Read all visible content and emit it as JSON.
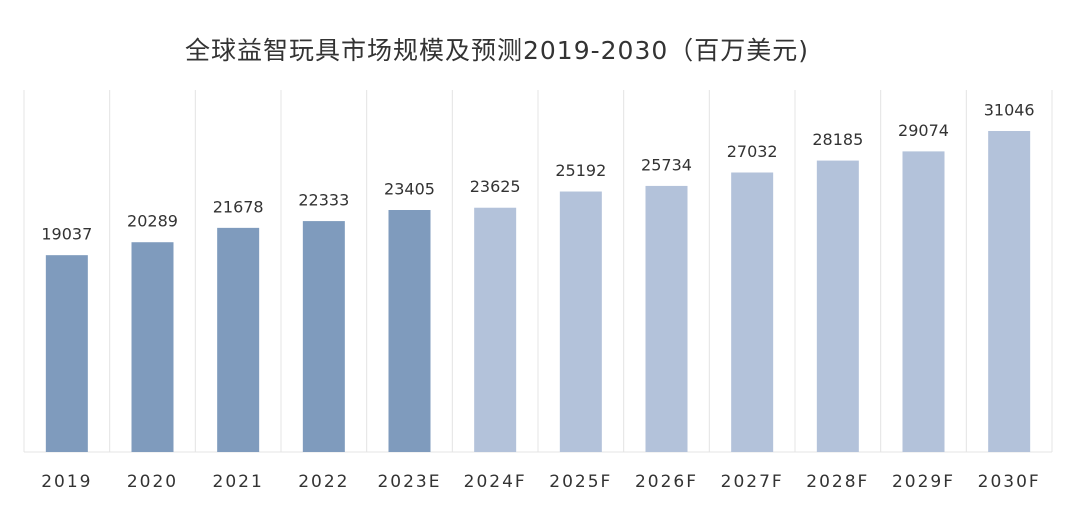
{
  "chart_data": {
    "type": "bar",
    "title": "全球益智玩具市场规模及预测2019-2030（百万美元)",
    "categories": [
      "2019",
      "2020",
      "2021",
      "2022",
      "2023E",
      "2024F",
      "2025F",
      "2026F",
      "2027F",
      "2028F",
      "2029F",
      "2030F"
    ],
    "values": [
      19037,
      20289,
      21678,
      22333,
      23405,
      23625,
      25192,
      25734,
      27032,
      28185,
      29074,
      31046
    ],
    "colors": [
      "#7f9bbd",
      "#7f9bbd",
      "#7f9bbd",
      "#7f9bbd",
      "#7f9bbd",
      "#b3c2da",
      "#b3c2da",
      "#b3c2da",
      "#b3c2da",
      "#b3c2da",
      "#b3c2da",
      "#b3c2da"
    ]
  }
}
